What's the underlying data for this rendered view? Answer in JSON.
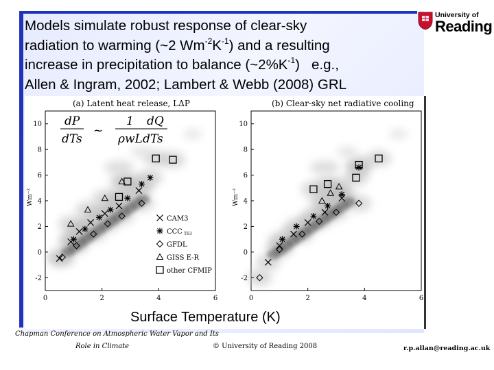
{
  "slide": {
    "headline_parts": {
      "line1": "Models simulate robust response of clear-sky",
      "line2_a": "radiation to warming (~2 Wm",
      "line2_sup1": "-2",
      "line2_b": "K",
      "line2_sup2": "-1",
      "line2_c": ") and a resulting",
      "line3_a": "increase in precipitation to balance (~2%K",
      "line3_sup": "-1",
      "line3_b": ")   e.g.,",
      "line4": "Allen & Ingram, 2002; Lambert & Webb (2008) GRL"
    },
    "xlabel": "Surface Temperature (K)",
    "logo": {
      "line1": "University of",
      "line2": "Reading"
    },
    "footer": {
      "conference_line1": "Chapman Conference on Atmospheric Water Vapor and Its",
      "conference_line2": "Role in Climate",
      "copyright": "© University of Reading 2008",
      "email": "r.p.allan@reading.ac.uk"
    }
  },
  "colors": {
    "accent_blue": "#2233bb",
    "slide_bg": "#e6ebff"
  },
  "chart_data": [
    {
      "type": "scatter",
      "title": "(a) Latent heat release, LΔP",
      "ylabel": "Wm⁻²",
      "xlim": [
        0,
        6
      ],
      "ylim": [
        -3,
        11
      ],
      "xticks": [
        0,
        2,
        4,
        6
      ],
      "yticks": [
        -2,
        0,
        2,
        4,
        6,
        8,
        10
      ],
      "equation": "dP/dTs ~ (1/ρwL) dQ/dTs",
      "legend": [
        "CAM3",
        "CCC",
        "GFDL",
        "GISS E-R",
        "other CFMIP"
      ],
      "legend_subscript": "T63",
      "series": [
        {
          "name": "CAM3",
          "marker": "x",
          "points": [
            [
              0.5,
              -0.5
            ],
            [
              0.9,
              0.8
            ],
            [
              1.2,
              1.6
            ],
            [
              1.6,
              2.3
            ],
            [
              2.1,
              3.0
            ],
            [
              2.6,
              3.6
            ],
            [
              3.3,
              4.8
            ]
          ]
        },
        {
          "name": "CCC",
          "marker": "asterisk",
          "points": [
            [
              1.0,
              1.0
            ],
            [
              1.4,
              1.8
            ],
            [
              1.9,
              2.7
            ],
            [
              2.3,
              3.3
            ],
            [
              2.9,
              4.2
            ],
            [
              3.4,
              5.3
            ],
            [
              3.7,
              5.8
            ]
          ]
        },
        {
          "name": "GFDL",
          "marker": "diamond",
          "points": [
            [
              0.6,
              -0.4
            ],
            [
              1.1,
              0.5
            ],
            [
              1.7,
              1.4
            ],
            [
              2.2,
              2.2
            ],
            [
              2.7,
              2.8
            ],
            [
              3.4,
              3.8
            ]
          ]
        },
        {
          "name": "GISS E-R",
          "marker": "triangle",
          "points": [
            [
              0.9,
              2.2
            ],
            [
              1.5,
              3.3
            ],
            [
              2.1,
              4.2
            ],
            [
              2.7,
              5.5
            ]
          ]
        },
        {
          "name": "other CFMIP",
          "marker": "square",
          "points": [
            [
              2.6,
              4.3
            ],
            [
              2.9,
              5.5
            ],
            [
              3.9,
              7.3
            ],
            [
              4.5,
              7.2
            ]
          ]
        }
      ]
    },
    {
      "type": "scatter",
      "title": "(b) Clear-sky net radiative cooling",
      "ylabel": "Wm⁻²",
      "xlim": [
        0,
        6
      ],
      "ylim": [
        -3,
        11
      ],
      "xticks": [
        0,
        2,
        4,
        6
      ],
      "yticks": [
        -2,
        0,
        2,
        4,
        6,
        8,
        10
      ],
      "series": [
        {
          "name": "CAM3",
          "marker": "x",
          "points": [
            [
              0.6,
              -0.8
            ],
            [
              1.0,
              0.5
            ],
            [
              1.5,
              1.4
            ],
            [
              2.0,
              2.3
            ],
            [
              2.6,
              3.1
            ],
            [
              3.2,
              4.2
            ]
          ]
        },
        {
          "name": "CCC",
          "marker": "asterisk",
          "points": [
            [
              1.1,
              1.0
            ],
            [
              1.6,
              2.0
            ],
            [
              2.2,
              2.8
            ],
            [
              2.7,
              3.6
            ],
            [
              3.2,
              4.5
            ],
            [
              3.8,
              6.6
            ]
          ]
        },
        {
          "name": "GFDL",
          "marker": "diamond",
          "points": [
            [
              0.3,
              -2.0
            ],
            [
              1.0,
              0.2
            ],
            [
              1.8,
              1.4
            ],
            [
              2.4,
              2.4
            ],
            [
              3.0,
              3.1
            ],
            [
              3.8,
              3.8
            ]
          ]
        },
        {
          "name": "GISS E-R",
          "marker": "triangle",
          "points": [
            [
              2.5,
              4.0
            ],
            [
              2.8,
              4.6
            ],
            [
              3.1,
              5.1
            ]
          ]
        },
        {
          "name": "other CFMIP",
          "marker": "square",
          "points": [
            [
              2.2,
              4.9
            ],
            [
              2.7,
              5.3
            ],
            [
              3.7,
              5.8
            ],
            [
              3.8,
              6.8
            ],
            [
              4.5,
              7.3
            ]
          ]
        }
      ]
    }
  ]
}
